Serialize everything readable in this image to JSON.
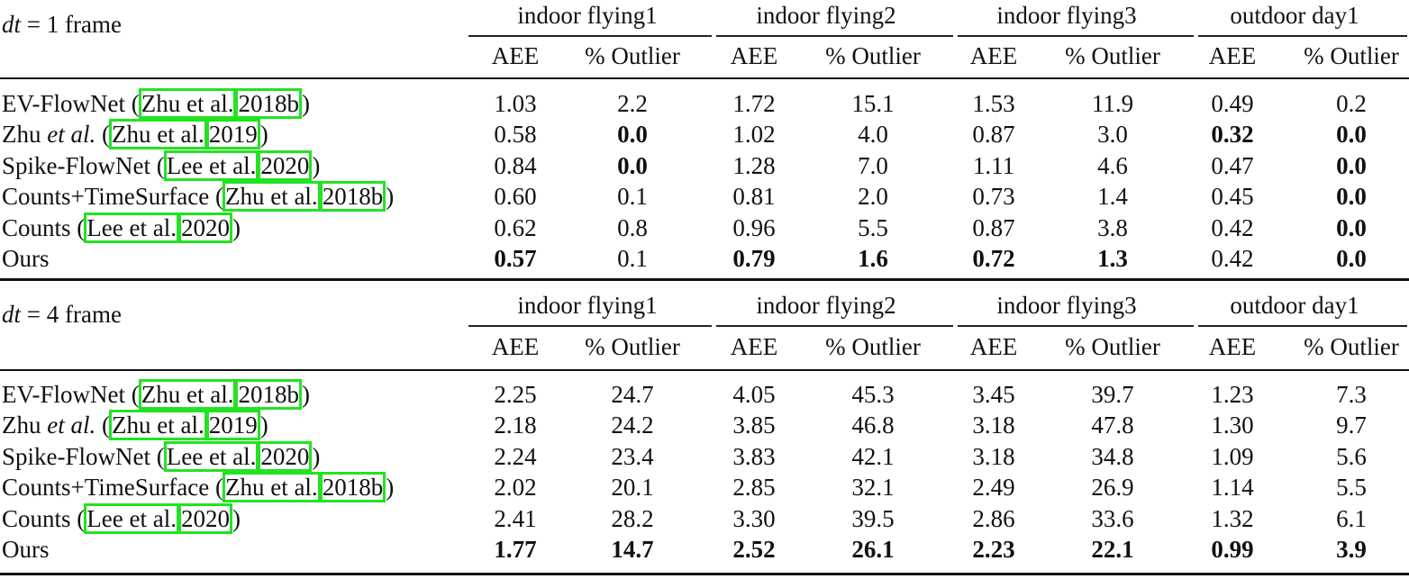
{
  "table": {
    "groups": [
      "indoor flying1",
      "indoor flying2",
      "indoor flying3",
      "outdoor day1"
    ],
    "subheaders": [
      "AEE",
      "% Outlier"
    ],
    "highlight_color": "#22e322",
    "sections": [
      {
        "label_math": "dt",
        "label_eq": " = 1 ",
        "label_unit": "frame",
        "rows": [
          {
            "name": "EV-FlowNet (",
            "name_italic": "",
            "name_post": "",
            "cite_author": "Zhu et al.",
            "cite_year": "2018b",
            "close": ")",
            "values": [
              "1.03",
              "2.2",
              "1.72",
              "15.1",
              "1.53",
              "11.9",
              "0.49",
              "0.2"
            ],
            "bold": [
              false,
              false,
              false,
              false,
              false,
              false,
              false,
              false
            ]
          },
          {
            "name": "Zhu ",
            "name_italic": "et al.",
            "name_post": " (",
            "cite_author": "Zhu et al.",
            "cite_year": "2019",
            "close": ")",
            "values": [
              "0.58",
              "0.0",
              "1.02",
              "4.0",
              "0.87",
              "3.0",
              "0.32",
              "0.0"
            ],
            "bold": [
              false,
              true,
              false,
              false,
              false,
              false,
              true,
              true
            ]
          },
          {
            "name": "Spike-FlowNet (",
            "name_italic": "",
            "name_post": "",
            "cite_author": "Lee et al.",
            "cite_year": "2020",
            "close": ")",
            "values": [
              "0.84",
              "0.0",
              "1.28",
              "7.0",
              "1.11",
              "4.6",
              "0.47",
              "0.0"
            ],
            "bold": [
              false,
              true,
              false,
              false,
              false,
              false,
              false,
              true
            ]
          },
          {
            "name": "Counts+TimeSurface (",
            "name_italic": "",
            "name_post": "",
            "cite_author": "Zhu et al.",
            "cite_year": "2018b",
            "close": ")",
            "values": [
              "0.60",
              "0.1",
              "0.81",
              "2.0",
              "0.73",
              "1.4",
              "0.45",
              "0.0"
            ],
            "bold": [
              false,
              false,
              false,
              false,
              false,
              false,
              false,
              true
            ]
          },
          {
            "name": "Counts (",
            "name_italic": "",
            "name_post": "",
            "cite_author": "Lee et al.",
            "cite_year": "2020",
            "close": ")",
            "values": [
              "0.62",
              "0.8",
              "0.96",
              "5.5",
              "0.87",
              "3.8",
              "0.42",
              "0.0"
            ],
            "bold": [
              false,
              false,
              false,
              false,
              false,
              false,
              false,
              true
            ]
          },
          {
            "name": "Ours",
            "name_italic": "",
            "name_post": "",
            "cite_author": "",
            "cite_year": "",
            "close": "",
            "values": [
              "0.57",
              "0.1",
              "0.79",
              "1.6",
              "0.72",
              "1.3",
              "0.42",
              "0.0"
            ],
            "bold": [
              true,
              false,
              true,
              true,
              true,
              true,
              false,
              true
            ]
          }
        ]
      },
      {
        "label_math": "dt",
        "label_eq": " = 4 ",
        "label_unit": "frame",
        "rows": [
          {
            "name": "EV-FlowNet (",
            "name_italic": "",
            "name_post": "",
            "cite_author": "Zhu et al.",
            "cite_year": "2018b",
            "close": ")",
            "values": [
              "2.25",
              "24.7",
              "4.05",
              "45.3",
              "3.45",
              "39.7",
              "1.23",
              "7.3"
            ],
            "bold": [
              false,
              false,
              false,
              false,
              false,
              false,
              false,
              false
            ]
          },
          {
            "name": "Zhu ",
            "name_italic": "et al.",
            "name_post": " (",
            "cite_author": "Zhu et al.",
            "cite_year": "2019",
            "close": ")",
            "values": [
              "2.18",
              "24.2",
              "3.85",
              "46.8",
              "3.18",
              "47.8",
              "1.30",
              "9.7"
            ],
            "bold": [
              false,
              false,
              false,
              false,
              false,
              false,
              false,
              false
            ]
          },
          {
            "name": "Spike-FlowNet (",
            "name_italic": "",
            "name_post": "",
            "cite_author": "Lee et al.",
            "cite_year": "2020",
            "close": ")",
            "values": [
              "2.24",
              "23.4",
              "3.83",
              "42.1",
              "3.18",
              "34.8",
              "1.09",
              "5.6"
            ],
            "bold": [
              false,
              false,
              false,
              false,
              false,
              false,
              false,
              false
            ]
          },
          {
            "name": "Counts+TimeSurface (",
            "name_italic": "",
            "name_post": "",
            "cite_author": "Zhu et al.",
            "cite_year": "2018b",
            "close": ")",
            "values": [
              "2.02",
              "20.1",
              "2.85",
              "32.1",
              "2.49",
              "26.9",
              "1.14",
              "5.5"
            ],
            "bold": [
              false,
              false,
              false,
              false,
              false,
              false,
              false,
              false
            ]
          },
          {
            "name": "Counts (",
            "name_italic": "",
            "name_post": "",
            "cite_author": "Lee et al.",
            "cite_year": "2020",
            "close": ")",
            "values": [
              "2.41",
              "28.2",
              "3.30",
              "39.5",
              "2.86",
              "33.6",
              "1.32",
              "6.1"
            ],
            "bold": [
              false,
              false,
              false,
              false,
              false,
              false,
              false,
              false
            ]
          },
          {
            "name": "Ours",
            "name_italic": "",
            "name_post": "",
            "cite_author": "",
            "cite_year": "",
            "close": "",
            "values": [
              "1.77",
              "14.7",
              "2.52",
              "26.1",
              "2.23",
              "22.1",
              "0.99",
              "3.9"
            ],
            "bold": [
              true,
              true,
              true,
              true,
              true,
              true,
              true,
              true
            ]
          }
        ]
      }
    ]
  }
}
